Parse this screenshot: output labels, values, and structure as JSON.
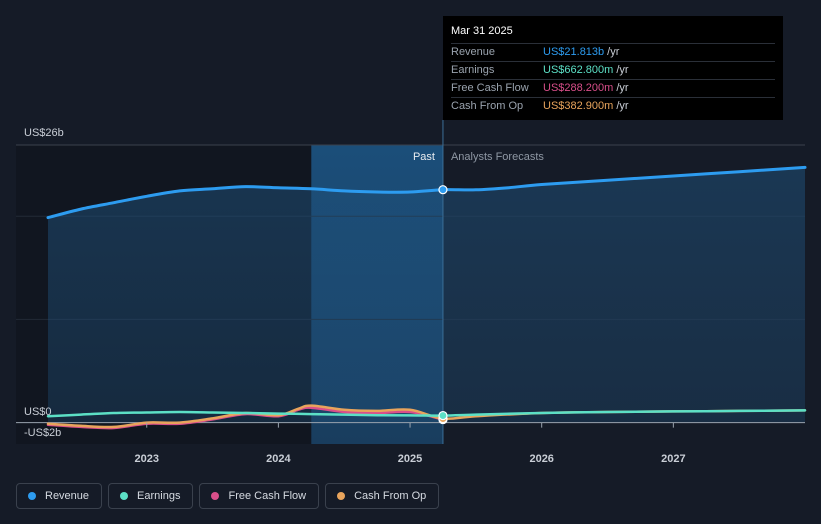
{
  "chart_data": {
    "type": "line",
    "y_axis": {
      "top_label": "US$26b",
      "zero_label": "US$0",
      "bottom_label": "-US$2b",
      "ylim": [
        -2,
        26
      ]
    },
    "x_axis": {
      "ticks": [
        "2023",
        "2024",
        "2025",
        "2026",
        "2027"
      ],
      "xlim": [
        2022.25,
        2028.0
      ]
    },
    "divider": {
      "x": 2025.25,
      "past_label": "Past",
      "forecast_label": "Analysts Forecasts"
    },
    "series": [
      {
        "name": "Revenue",
        "color": "#2d9cf0",
        "x": [
          2022.25,
          2022.5,
          2022.75,
          2023.0,
          2023.25,
          2023.5,
          2023.75,
          2024.0,
          2024.25,
          2024.5,
          2024.75,
          2025.0,
          2025.25,
          2025.5,
          2025.75,
          2026.0,
          2026.5,
          2027.0,
          2027.5,
          2028.0
        ],
        "y": [
          19.2,
          20.0,
          20.6,
          21.2,
          21.7,
          21.9,
          22.1,
          22.0,
          21.9,
          21.7,
          21.6,
          21.6,
          21.813,
          21.8,
          22.0,
          22.3,
          22.7,
          23.1,
          23.5,
          23.9
        ]
      },
      {
        "name": "Earnings",
        "color": "#5ce0c6",
        "x": [
          2022.25,
          2022.5,
          2022.75,
          2023.0,
          2023.25,
          2023.5,
          2023.75,
          2024.0,
          2024.25,
          2024.5,
          2024.75,
          2025.0,
          2025.25,
          2025.5,
          2026.0,
          2026.5,
          2027.0,
          2027.5,
          2028.0
        ],
        "y": [
          0.6,
          0.75,
          0.9,
          0.95,
          1.0,
          0.95,
          0.9,
          0.85,
          0.8,
          0.75,
          0.7,
          0.68,
          0.663,
          0.75,
          0.9,
          1.0,
          1.05,
          1.1,
          1.15
        ]
      },
      {
        "name": "Free Cash Flow",
        "color": "#d94f8a",
        "x": [
          2022.25,
          2022.5,
          2022.75,
          2023.0,
          2023.25,
          2023.5,
          2023.75,
          2024.0,
          2024.15,
          2024.25,
          2024.5,
          2024.75,
          2025.0,
          2025.25
        ],
        "y": [
          -0.2,
          -0.4,
          -0.5,
          -0.1,
          -0.1,
          0.3,
          0.8,
          0.6,
          1.2,
          1.4,
          1.0,
          0.9,
          1.0,
          0.288
        ]
      },
      {
        "name": "Cash From Op",
        "color": "#e8a45c",
        "x": [
          2022.25,
          2022.5,
          2022.75,
          2023.0,
          2023.25,
          2023.5,
          2023.75,
          2024.0,
          2024.15,
          2024.25,
          2024.5,
          2024.75,
          2025.0,
          2025.25,
          2025.5,
          2026.0,
          2026.5,
          2027.0,
          2027.5,
          2028.0
        ],
        "y": [
          -0.1,
          -0.3,
          -0.4,
          0.0,
          0.0,
          0.4,
          0.9,
          0.7,
          1.3,
          1.6,
          1.2,
          1.1,
          1.2,
          0.383,
          0.6,
          0.9,
          1.0,
          1.05,
          1.1,
          1.15
        ]
      }
    ],
    "tooltip": {
      "date": "Mar 31 2025",
      "rows": [
        {
          "label": "Revenue",
          "value": "US$21.813b",
          "unit": "/yr",
          "color": "#2d9cf0"
        },
        {
          "label": "Earnings",
          "value": "US$662.800m",
          "unit": "/yr",
          "color": "#5ce0c6"
        },
        {
          "label": "Free Cash Flow",
          "value": "US$288.200m",
          "unit": "/yr",
          "color": "#d94f8a"
        },
        {
          "label": "Cash From Op",
          "value": "US$382.900m",
          "unit": "/yr",
          "color": "#e8a45c"
        }
      ]
    },
    "legend": [
      {
        "label": "Revenue",
        "color": "#2d9cf0"
      },
      {
        "label": "Earnings",
        "color": "#5ce0c6"
      },
      {
        "label": "Free Cash Flow",
        "color": "#d94f8a"
      },
      {
        "label": "Cash From Op",
        "color": "#e8a45c"
      }
    ]
  }
}
